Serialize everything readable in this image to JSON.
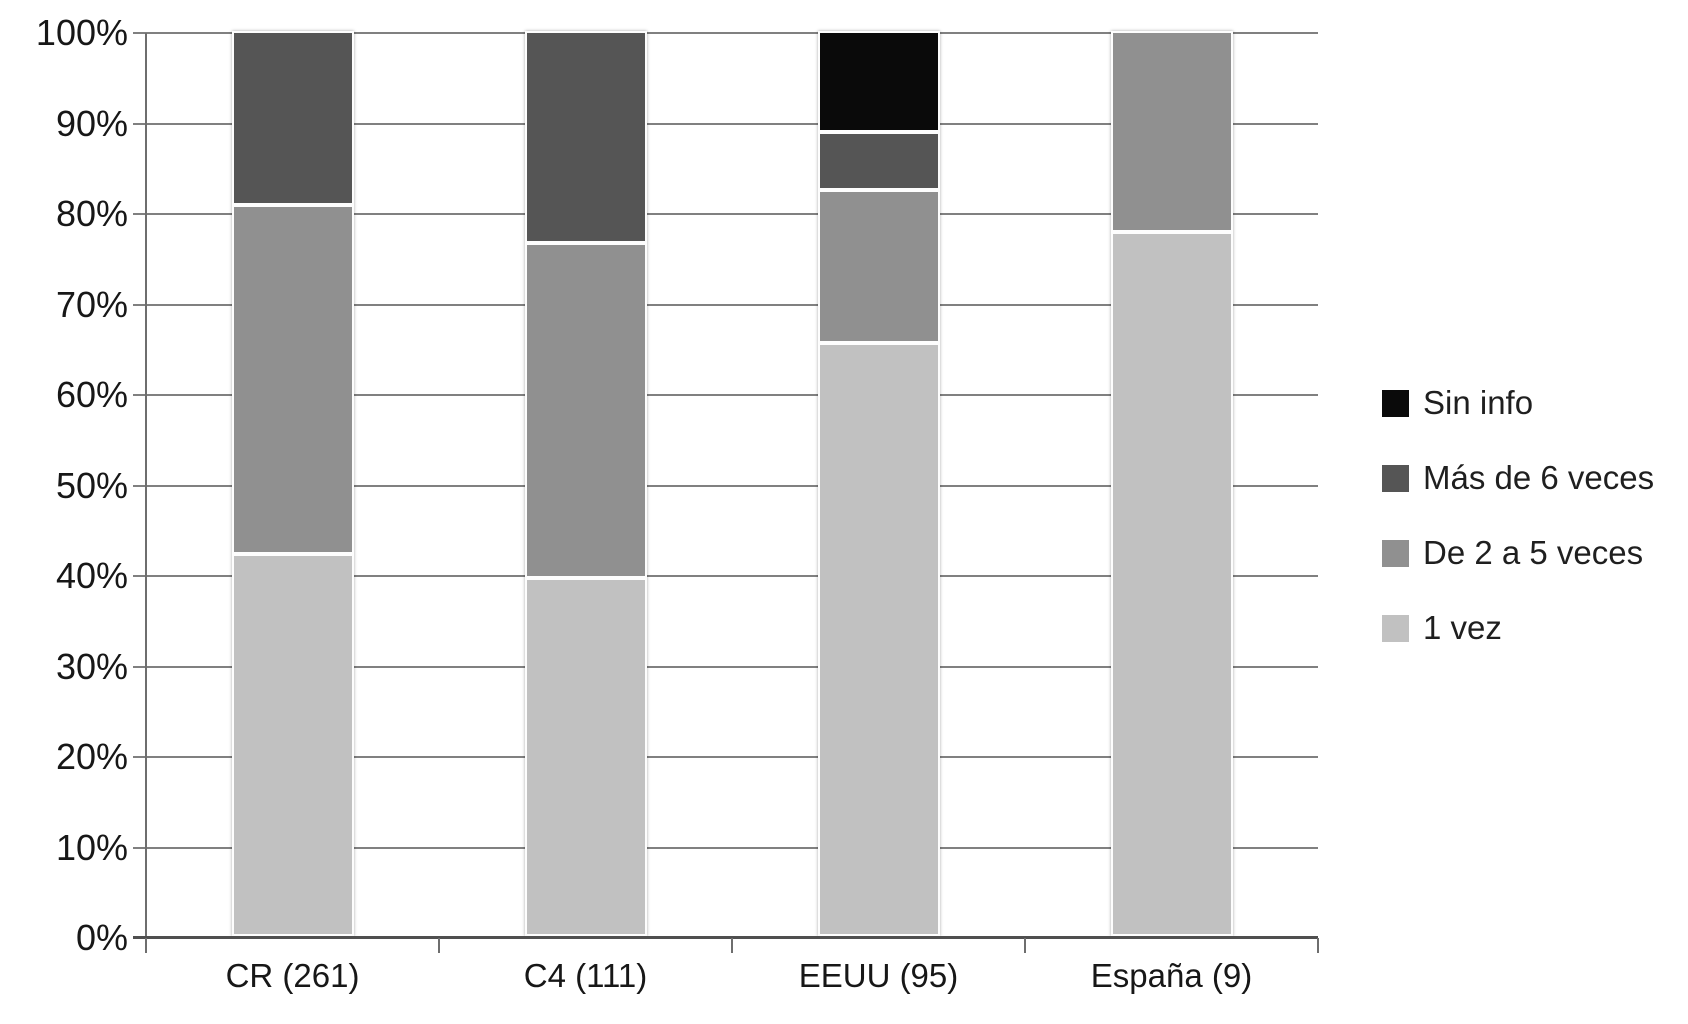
{
  "chart_data": {
    "type": "bar",
    "subtype": "stacked-100-percent",
    "title": "",
    "xlabel": "",
    "ylabel": "",
    "categories": [
      "CR (261)",
      "C4 (111)",
      "EEUU (95)",
      "España (9)"
    ],
    "series": [
      {
        "name": "1 vez",
        "color": "#c1c1c1",
        "values": [
          42.2,
          39.6,
          65.5,
          77.8
        ]
      },
      {
        "name": "De 2 a 5 veces",
        "color": "#909090",
        "values": [
          38.6,
          37.0,
          16.9,
          22.2
        ]
      },
      {
        "name": "Más de 6 veces",
        "color": "#555555",
        "values": [
          19.2,
          23.4,
          6.4,
          0.0
        ]
      },
      {
        "name": "Sin info",
        "color": "#0a0a0a",
        "values": [
          0.0,
          0.0,
          11.2,
          0.0
        ]
      }
    ],
    "y_axis": {
      "min": 0,
      "max": 100,
      "step": 10,
      "tick_suffix": "%"
    },
    "y_ticks": [
      "0%",
      "10%",
      "20%",
      "30%",
      "40%",
      "50%",
      "60%",
      "70%",
      "80%",
      "90%",
      "100%"
    ],
    "grid": true,
    "legend": {
      "position": "right",
      "order": [
        "Sin info",
        "Más de 6 veces",
        "De 2 a 5 veces",
        "1 vez"
      ]
    }
  },
  "colors": {
    "background": "#ffffff",
    "gridline": "#808080",
    "axis": "#4f4f4f",
    "text": "#1a1a1a"
  }
}
